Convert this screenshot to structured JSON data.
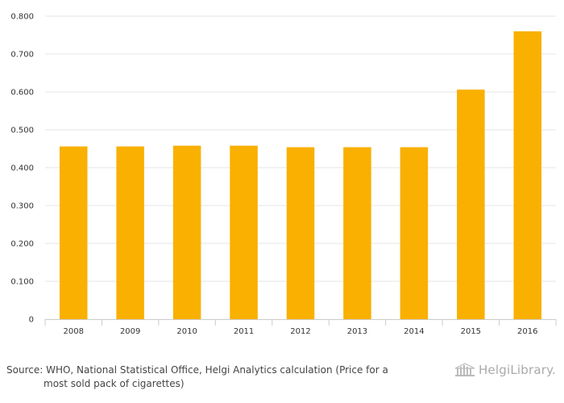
{
  "chart_data": {
    "type": "bar",
    "categories": [
      "2008",
      "2009",
      "2010",
      "2011",
      "2012",
      "2013",
      "2014",
      "2015",
      "2016"
    ],
    "values": [
      0.456,
      0.456,
      0.458,
      0.458,
      0.454,
      0.454,
      0.454,
      0.606,
      0.76
    ],
    "ylim": [
      0,
      0.8
    ],
    "yticks": [
      0,
      0.1,
      0.2,
      0.3,
      0.4,
      0.5,
      0.6,
      0.7,
      0.8
    ],
    "ytick_labels": [
      "0",
      "0.100",
      "0.200",
      "0.300",
      "0.400",
      "0.500",
      "0.600",
      "0.700",
      "0.800"
    ],
    "grid": true,
    "bar_color": "#f9b000",
    "title": "",
    "xlabel": "",
    "ylabel": ""
  },
  "footer": {
    "source_line1": "Source: WHO, National Statistical Office, Helgi Analytics calculation (Price for a",
    "source_line2": "most sold pack of cigarettes)",
    "logo_text": "HelgiLibrary.",
    "logo_icon": "helgi-library-building-icon"
  }
}
